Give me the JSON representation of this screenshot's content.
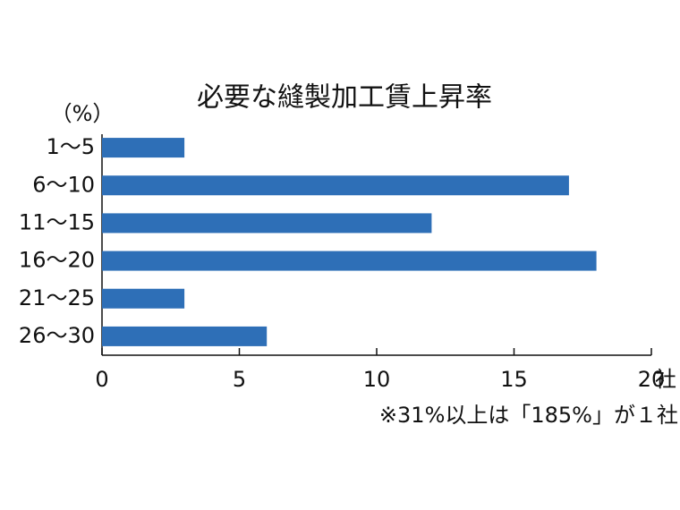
{
  "chart_data": {
    "type": "bar",
    "orientation": "horizontal",
    "title": "必要な縫製加工賃上昇率",
    "y_label": "（%）",
    "x_unit": "社",
    "categories": [
      "1～5",
      "6～10",
      "11～15",
      "16～20",
      "21～25",
      "26～30"
    ],
    "values": [
      3,
      17,
      12,
      18,
      3,
      6
    ],
    "color": "#2e6fb7",
    "xlim": [
      0,
      20
    ],
    "xticks": [
      0,
      5,
      10,
      15,
      20
    ],
    "note": "※31%以上は「185%」が１社"
  }
}
